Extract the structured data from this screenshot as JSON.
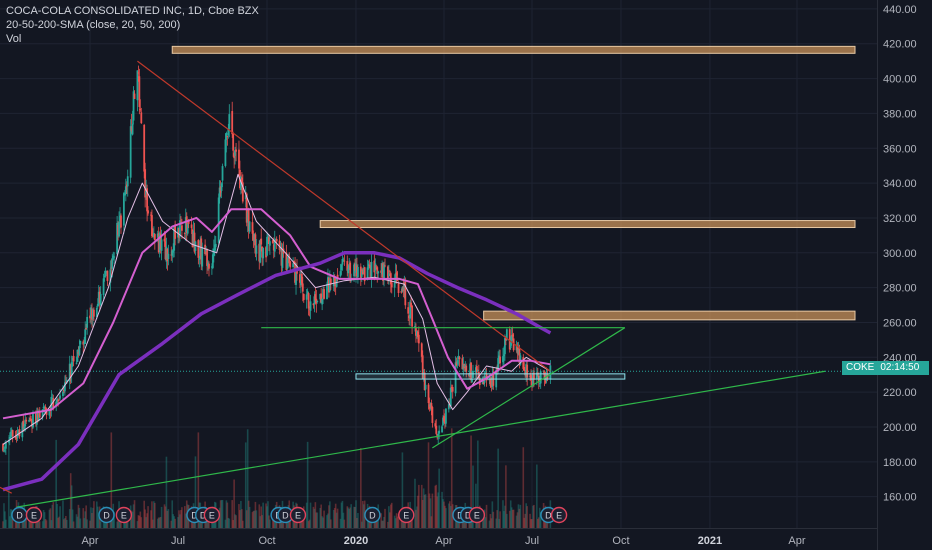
{
  "legend": {
    "title": "COCA-COLA CONSOLIDATED INC, 1D, Cboe BZX",
    "sma": "20-50-200-SMA (close, 20, 50, 200)",
    "vol": "Vol"
  },
  "price_tag": {
    "symbol": "COKE",
    "time": "02:14:50"
  },
  "colors": {
    "background": "#131722",
    "up": "#26a69a",
    "down": "#ef5350",
    "sma20": "#e3bfe6",
    "sma50": "#d45fd0",
    "sma200": "#7b2fbe",
    "trend_red": "#c0392b",
    "trend_green": "#2fb84a",
    "zone_orange": "#c8925a",
    "zone_cyan": "#8fe3ee"
  },
  "chart_data": {
    "type": "candlestick",
    "title": "COCA-COLA CONSOLIDATED INC, 1D, Cboe BZX",
    "x_ticks": [
      "Apr",
      "Jul",
      "Oct",
      "2020",
      "Apr",
      "Jul",
      "Oct",
      "2021",
      "Apr"
    ],
    "y_ticks": [
      "160.00",
      "180.00",
      "200.00",
      "220.00",
      "240.00",
      "260.00",
      "280.00",
      "300.00",
      "320.00",
      "340.00",
      "360.00",
      "380.00",
      "400.00",
      "420.00",
      "440.00"
    ],
    "ylim": [
      140,
      446
    ],
    "current_price": 232,
    "close_path": [
      [
        "2019-01-01",
        190
      ],
      [
        "2019-02-01",
        205
      ],
      [
        "2019-03-01",
        218
      ],
      [
        "2019-03-20",
        245
      ],
      [
        "2019-04-10",
        275
      ],
      [
        "2019-04-25",
        300
      ],
      [
        "2019-05-08",
        335
      ],
      [
        "2019-05-20",
        410
      ],
      [
        "2019-05-27",
        340
      ],
      [
        "2019-06-05",
        310
      ],
      [
        "2019-06-20",
        300
      ],
      [
        "2019-07-05",
        318
      ],
      [
        "2019-07-25",
        300
      ],
      [
        "2019-08-05",
        292
      ],
      [
        "2019-08-15",
        340
      ],
      [
        "2019-08-22",
        378
      ],
      [
        "2019-09-01",
        345
      ],
      [
        "2019-09-20",
        300
      ],
      [
        "2019-10-05",
        305
      ],
      [
        "2019-10-20",
        295
      ],
      [
        "2019-11-01",
        285
      ],
      [
        "2019-11-15",
        270
      ],
      [
        "2019-12-01",
        280
      ],
      [
        "2019-12-20",
        292
      ],
      [
        "2020-01-10",
        288
      ],
      [
        "2020-02-01",
        290
      ],
      [
        "2020-02-20",
        278
      ],
      [
        "2020-03-05",
        250
      ],
      [
        "2020-03-15",
        215
      ],
      [
        "2020-03-25",
        195
      ],
      [
        "2020-04-05",
        210
      ],
      [
        "2020-04-15",
        238
      ],
      [
        "2020-05-01",
        230
      ],
      [
        "2020-05-20",
        225
      ],
      [
        "2020-06-05",
        252
      ],
      [
        "2020-06-20",
        238
      ],
      [
        "2020-07-01",
        228
      ],
      [
        "2020-07-15",
        230
      ],
      [
        "2020-07-20",
        232
      ]
    ],
    "sma": [
      {
        "name": "20",
        "points": [
          [
            "2019-01-01",
            190
          ],
          [
            "2019-02-10",
            205
          ],
          [
            "2019-03-20",
            235
          ],
          [
            "2019-04-20",
            280
          ],
          [
            "2019-05-10",
            320
          ],
          [
            "2019-05-25",
            340
          ],
          [
            "2019-06-15",
            318
          ],
          [
            "2019-07-15",
            305
          ],
          [
            "2019-08-10",
            300
          ],
          [
            "2019-09-01",
            345
          ],
          [
            "2019-09-20",
            318
          ],
          [
            "2019-10-20",
            300
          ],
          [
            "2019-11-20",
            280
          ],
          [
            "2019-12-20",
            284
          ],
          [
            "2020-01-20",
            286
          ],
          [
            "2020-02-20",
            282
          ],
          [
            "2020-03-10",
            262
          ],
          [
            "2020-03-25",
            225
          ],
          [
            "2020-04-10",
            210
          ],
          [
            "2020-04-25",
            220
          ],
          [
            "2020-05-15",
            235
          ],
          [
            "2020-06-10",
            232
          ],
          [
            "2020-06-25",
            240
          ],
          [
            "2020-07-20",
            232
          ]
        ]
      },
      {
        "name": "50",
        "points": [
          [
            "2019-01-01",
            205
          ],
          [
            "2019-02-20",
            210
          ],
          [
            "2019-03-25",
            225
          ],
          [
            "2019-04-25",
            260
          ],
          [
            "2019-05-25",
            300
          ],
          [
            "2019-06-25",
            315
          ],
          [
            "2019-07-20",
            320
          ],
          [
            "2019-08-05",
            312
          ],
          [
            "2019-08-25",
            325
          ],
          [
            "2019-09-25",
            325
          ],
          [
            "2019-10-25",
            310
          ],
          [
            "2019-11-15",
            292
          ],
          [
            "2019-12-15",
            285
          ],
          [
            "2020-01-15",
            285
          ],
          [
            "2020-02-15",
            285
          ],
          [
            "2020-03-05",
            282
          ],
          [
            "2020-03-20",
            262
          ],
          [
            "2020-04-05",
            240
          ],
          [
            "2020-04-25",
            222
          ],
          [
            "2020-05-15",
            228
          ],
          [
            "2020-06-10",
            238
          ],
          [
            "2020-06-30",
            238
          ],
          [
            "2020-07-20",
            236
          ]
        ]
      },
      {
        "name": "200",
        "points": [
          [
            "2019-01-01",
            164
          ],
          [
            "2019-02-10",
            170
          ],
          [
            "2019-03-20",
            190
          ],
          [
            "2019-05-01",
            230
          ],
          [
            "2019-06-15",
            248
          ],
          [
            "2019-07-25",
            265
          ],
          [
            "2019-09-01",
            276
          ],
          [
            "2019-10-10",
            287
          ],
          [
            "2019-11-25",
            294
          ],
          [
            "2019-12-20",
            300
          ],
          [
            "2020-01-20",
            300
          ],
          [
            "2020-02-15",
            297
          ],
          [
            "2020-03-15",
            288
          ],
          [
            "2020-04-15",
            280
          ],
          [
            "2020-05-15",
            273
          ],
          [
            "2020-06-15",
            265
          ],
          [
            "2020-07-10",
            257
          ],
          [
            "2020-07-20",
            254
          ]
        ]
      }
    ],
    "zones": [
      {
        "color": "orange",
        "start": "2019-06-25",
        "end": "2021-05-31",
        "low": 414.5,
        "high": 418.5
      },
      {
        "color": "orange",
        "start": "2019-11-25",
        "end": "2021-05-31",
        "low": 314.5,
        "high": 318.5
      },
      {
        "color": "orange",
        "start": "2020-05-12",
        "end": "2021-05-31",
        "low": 261.5,
        "high": 266.5
      },
      {
        "color": "cyan",
        "start": "2020-01-01",
        "end": "2020-10-05",
        "low": 227.5,
        "high": 230.5
      }
    ],
    "trendlines": [
      {
        "color": "red",
        "from": [
          "2019-05-20",
          410
        ],
        "to": [
          "2020-07-20",
          232
        ]
      },
      {
        "color": "red",
        "from": [
          "2018-12-01",
          173
        ],
        "to": [
          "2019-01-10",
          162
        ]
      },
      {
        "color": "green",
        "from": [
          "2019-01-15",
          154
        ],
        "to": [
          "2021-04-30",
          232
        ]
      },
      {
        "color": "green",
        "from": [
          "2020-03-20",
          188
        ],
        "to": [
          "2020-10-05",
          257
        ]
      },
      {
        "color": "green",
        "from": [
          "2019-09-25",
          257
        ],
        "to": [
          "2020-10-05",
          257
        ]
      }
    ],
    "events": [
      {
        "label": "D",
        "date": "2019-01-18"
      },
      {
        "label": "E",
        "date": "2019-02-02"
      },
      {
        "label": "D",
        "date": "2019-04-18"
      },
      {
        "label": "E",
        "date": "2019-05-06"
      },
      {
        "label": "D",
        "date": "2019-07-18"
      },
      {
        "label": "D",
        "date": "2019-07-27"
      },
      {
        "label": "E",
        "date": "2019-08-05"
      },
      {
        "label": "D",
        "date": "2019-10-13"
      },
      {
        "label": "D",
        "date": "2019-10-20"
      },
      {
        "label": "E",
        "date": "2019-11-02"
      },
      {
        "label": "D",
        "date": "2020-01-18"
      },
      {
        "label": "E",
        "date": "2020-02-22"
      },
      {
        "label": "D",
        "date": "2020-04-18"
      },
      {
        "label": "D",
        "date": "2020-04-26"
      },
      {
        "label": "E",
        "date": "2020-05-05"
      },
      {
        "label": "D",
        "date": "2020-07-18"
      },
      {
        "label": "E",
        "date": "2020-07-29"
      }
    ]
  }
}
